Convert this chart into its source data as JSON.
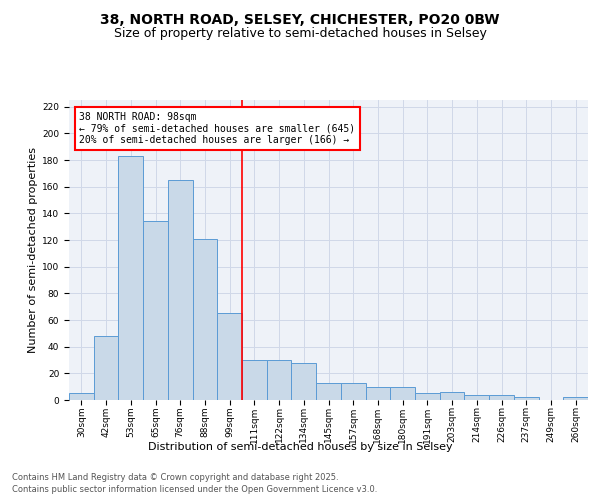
{
  "title_line1": "38, NORTH ROAD, SELSEY, CHICHESTER, PO20 0BW",
  "title_line2": "Size of property relative to semi-detached houses in Selsey",
  "xlabel": "Distribution of semi-detached houses by size in Selsey",
  "ylabel": "Number of semi-detached properties",
  "categories": [
    "30sqm",
    "42sqm",
    "53sqm",
    "65sqm",
    "76sqm",
    "88sqm",
    "99sqm",
    "111sqm",
    "122sqm",
    "134sqm",
    "145sqm",
    "157sqm",
    "168sqm",
    "180sqm",
    "191sqm",
    "203sqm",
    "214sqm",
    "226sqm",
    "237sqm",
    "249sqm",
    "260sqm"
  ],
  "values": [
    5,
    48,
    183,
    134,
    165,
    121,
    65,
    30,
    30,
    28,
    13,
    13,
    10,
    10,
    5,
    6,
    4,
    4,
    2,
    0,
    2
  ],
  "bar_color": "#c9d9e8",
  "bar_edge_color": "#5b9bd5",
  "vline_x": 6.5,
  "vline_color": "red",
  "annotation_title": "38 NORTH ROAD: 98sqm",
  "annotation_line1": "← 79% of semi-detached houses are smaller (645)",
  "annotation_line2": "20% of semi-detached houses are larger (166) →",
  "annotation_box_color": "red",
  "ylim": [
    0,
    225
  ],
  "yticks": [
    0,
    20,
    40,
    60,
    80,
    100,
    120,
    140,
    160,
    180,
    200,
    220
  ],
  "grid_color": "#d0d8e8",
  "bg_color": "#eef2f8",
  "footer_line1": "Contains HM Land Registry data © Crown copyright and database right 2025.",
  "footer_line2": "Contains public sector information licensed under the Open Government Licence v3.0.",
  "title_fontsize": 10,
  "subtitle_fontsize": 9,
  "axis_label_fontsize": 8,
  "tick_fontsize": 6.5,
  "annotation_fontsize": 7,
  "footer_fontsize": 6
}
